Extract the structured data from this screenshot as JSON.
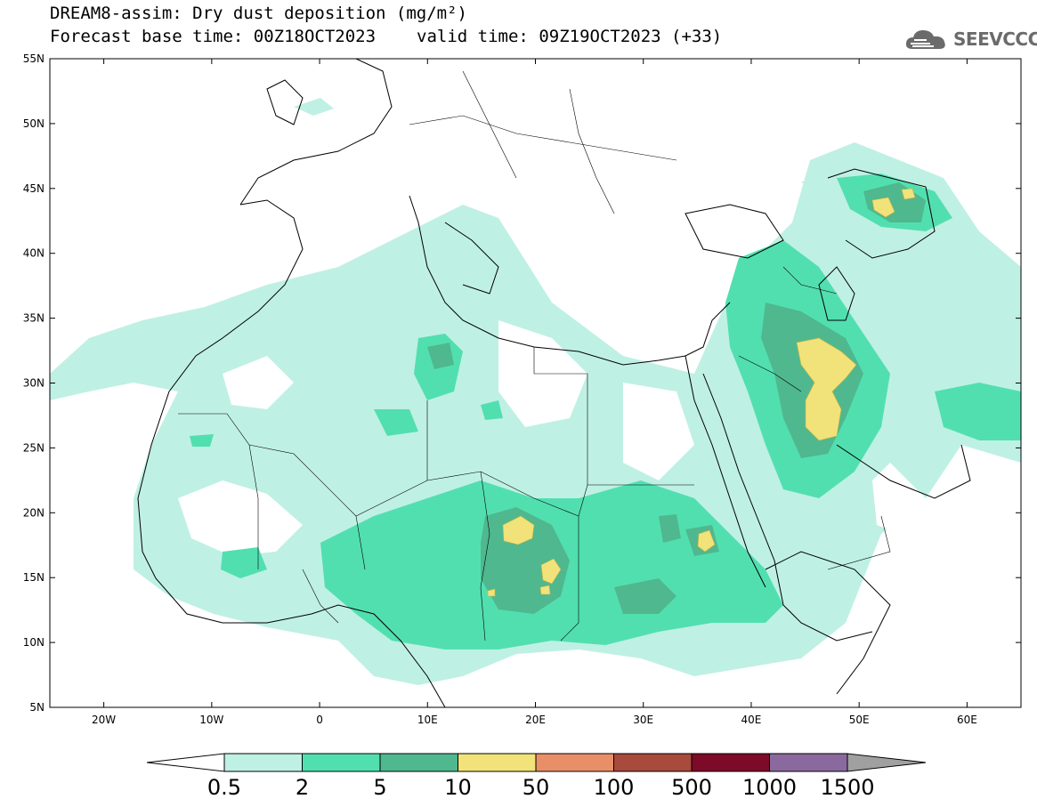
{
  "title": {
    "line1": "DREAM8-assim: Dry dust deposition (mg/m²)",
    "base_time": "Forecast base time: 00Z18OCT2023",
    "valid_time": "valid time: 09Z19OCT2023 (+33)"
  },
  "logo": {
    "icon": "cloud-icon",
    "text": "SEEVCCC"
  },
  "axes": {
    "lat_labels": [
      "5N",
      "10N",
      "15N",
      "20N",
      "25N",
      "30N",
      "35N",
      "40N",
      "45N",
      "50N",
      "55N"
    ],
    "lat_values": [
      5,
      10,
      15,
      20,
      25,
      30,
      35,
      40,
      45,
      50,
      55
    ],
    "lon_labels": [
      "20W",
      "10W",
      "0",
      "10E",
      "20E",
      "30E",
      "40E",
      "50E",
      "60E"
    ],
    "lon_values": [
      -20,
      -10,
      0,
      10,
      20,
      30,
      40,
      50,
      60
    ],
    "lon_range": [
      -25,
      65
    ],
    "lat_range": [
      5,
      55
    ]
  },
  "colorbar": {
    "labels": [
      "0.5",
      "2",
      "5",
      "10",
      "50",
      "100",
      "500",
      "1000",
      "1500"
    ],
    "colors": [
      "#bff0e4",
      "#52dfb0",
      "#4fb88f",
      "#f2e27a",
      "#e98f68",
      "#a84a3c",
      "#7d0a28",
      "#8a6a9e",
      "#a0a0a0"
    ]
  }
}
